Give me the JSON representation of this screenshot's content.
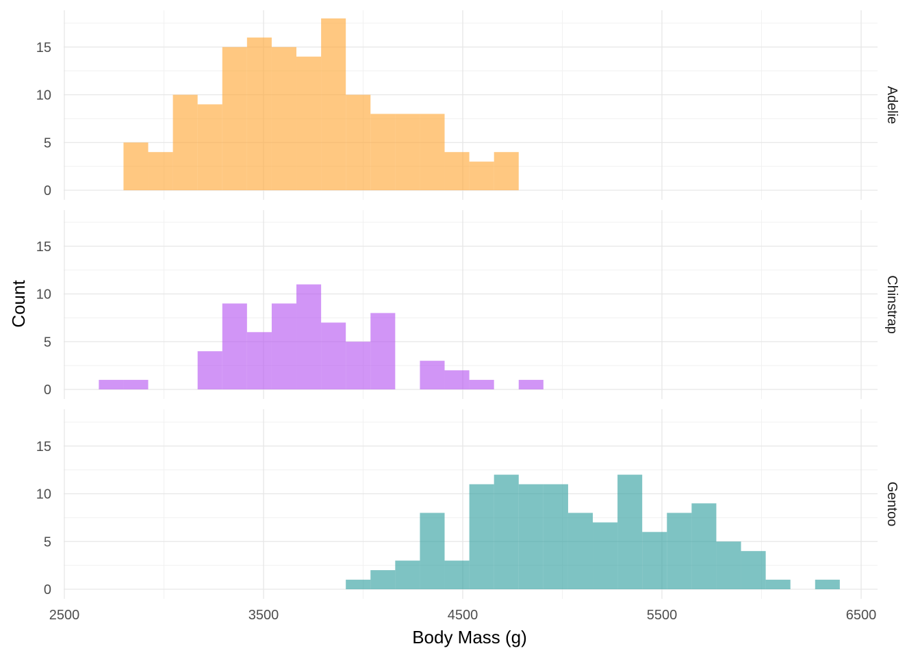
{
  "chart_data": {
    "type": "bar",
    "subtype": "faceted-histogram",
    "xlabel": "Body Mass (g)",
    "ylabel": "Count",
    "xlim": [
      2500,
      6500
    ],
    "ylim": [
      0,
      18
    ],
    "x_ticks": [
      2500,
      3500,
      4500,
      5500,
      6500
    ],
    "x_tick_labels": [
      "2500",
      "3500",
      "4500",
      "5500",
      "6500"
    ],
    "y_ticks": [
      0,
      5,
      10,
      15
    ],
    "y_tick_labels": [
      "0",
      "5",
      "10",
      "15"
    ],
    "bin_width": 124,
    "grid": true,
    "facet_layout": "rows, strip labels on right",
    "facets": [
      {
        "name": "Adelie",
        "color": "#FFA734",
        "bins": [
          {
            "x0": 2797,
            "x1": 2921,
            "count": 5
          },
          {
            "x0": 2921,
            "x1": 3045,
            "count": 4
          },
          {
            "x0": 3045,
            "x1": 3169,
            "count": 10
          },
          {
            "x0": 3169,
            "x1": 3293,
            "count": 9
          },
          {
            "x0": 3293,
            "x1": 3417,
            "count": 15
          },
          {
            "x0": 3417,
            "x1": 3541,
            "count": 16
          },
          {
            "x0": 3541,
            "x1": 3665,
            "count": 15
          },
          {
            "x0": 3665,
            "x1": 3789,
            "count": 14
          },
          {
            "x0": 3789,
            "x1": 3913,
            "count": 18
          },
          {
            "x0": 3913,
            "x1": 4037,
            "count": 10
          },
          {
            "x0": 4037,
            "x1": 4161,
            "count": 8
          },
          {
            "x0": 4161,
            "x1": 4285,
            "count": 8
          },
          {
            "x0": 4285,
            "x1": 4409,
            "count": 8
          },
          {
            "x0": 4409,
            "x1": 4533,
            "count": 4
          },
          {
            "x0": 4533,
            "x1": 4657,
            "count": 3
          },
          {
            "x0": 4657,
            "x1": 4781,
            "count": 4
          }
        ]
      },
      {
        "name": "Chinstrap",
        "color": "#B454F0",
        "bins": [
          {
            "x0": 2673,
            "x1": 2797,
            "count": 1
          },
          {
            "x0": 2797,
            "x1": 2921,
            "count": 1
          },
          {
            "x0": 2921,
            "x1": 3045,
            "count": 0
          },
          {
            "x0": 3045,
            "x1": 3169,
            "count": 0
          },
          {
            "x0": 3169,
            "x1": 3293,
            "count": 4
          },
          {
            "x0": 3293,
            "x1": 3417,
            "count": 9
          },
          {
            "x0": 3417,
            "x1": 3541,
            "count": 6
          },
          {
            "x0": 3541,
            "x1": 3665,
            "count": 9
          },
          {
            "x0": 3665,
            "x1": 3789,
            "count": 11
          },
          {
            "x0": 3789,
            "x1": 3913,
            "count": 7
          },
          {
            "x0": 3913,
            "x1": 4037,
            "count": 5
          },
          {
            "x0": 4037,
            "x1": 4161,
            "count": 8
          },
          {
            "x0": 4161,
            "x1": 4285,
            "count": 0
          },
          {
            "x0": 4285,
            "x1": 4409,
            "count": 3
          },
          {
            "x0": 4409,
            "x1": 4533,
            "count": 2
          },
          {
            "x0": 4533,
            "x1": 4657,
            "count": 1
          },
          {
            "x0": 4657,
            "x1": 4781,
            "count": 0
          },
          {
            "x0": 4781,
            "x1": 4905,
            "count": 1
          }
        ]
      },
      {
        "name": "Gentoo",
        "color": "#2E9E9E",
        "bins": [
          {
            "x0": 3913,
            "x1": 4037,
            "count": 1
          },
          {
            "x0": 4037,
            "x1": 4161,
            "count": 2
          },
          {
            "x0": 4161,
            "x1": 4285,
            "count": 3
          },
          {
            "x0": 4285,
            "x1": 4409,
            "count": 8
          },
          {
            "x0": 4409,
            "x1": 4533,
            "count": 3
          },
          {
            "x0": 4533,
            "x1": 4657,
            "count": 11
          },
          {
            "x0": 4657,
            "x1": 4781,
            "count": 12
          },
          {
            "x0": 4781,
            "x1": 4905,
            "count": 11
          },
          {
            "x0": 4905,
            "x1": 5029,
            "count": 11
          },
          {
            "x0": 5029,
            "x1": 5153,
            "count": 8
          },
          {
            "x0": 5153,
            "x1": 5277,
            "count": 7
          },
          {
            "x0": 5277,
            "x1": 5401,
            "count": 12
          },
          {
            "x0": 5401,
            "x1": 5525,
            "count": 6
          },
          {
            "x0": 5525,
            "x1": 5649,
            "count": 8
          },
          {
            "x0": 5649,
            "x1": 5773,
            "count": 9
          },
          {
            "x0": 5773,
            "x1": 5897,
            "count": 5
          },
          {
            "x0": 5897,
            "x1": 6021,
            "count": 4
          },
          {
            "x0": 6021,
            "x1": 6145,
            "count": 1
          },
          {
            "x0": 6145,
            "x1": 6269,
            "count": 0
          },
          {
            "x0": 6269,
            "x1": 6393,
            "count": 1
          }
        ]
      }
    ]
  }
}
